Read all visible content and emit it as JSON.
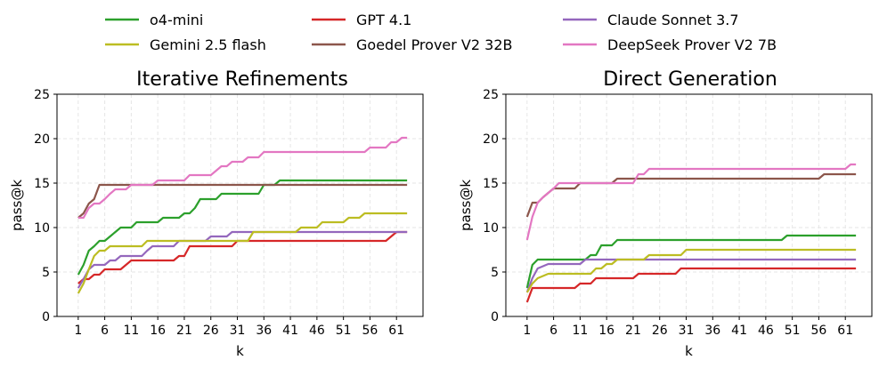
{
  "legend": [
    {
      "name": "o4-mini",
      "color": "#2ca02c"
    },
    {
      "name": "GPT 4.1",
      "color": "#d62728"
    },
    {
      "name": "Claude Sonnet 3.7",
      "color": "#9467bd"
    },
    {
      "name": "Gemini 2.5 flash",
      "color": "#bcbd22"
    },
    {
      "name": "Goedel Prover V2 32B",
      "color": "#8c564b"
    },
    {
      "name": "DeepSeek Prover V2 7B",
      "color": "#e377c2"
    }
  ],
  "chart_data": [
    {
      "type": "line",
      "title": "Iterative Refinements",
      "xlabel": "k",
      "ylabel": "pass@k",
      "xlim": [
        -3,
        66
      ],
      "ylim": [
        0,
        25
      ],
      "xticks": [
        1,
        6,
        11,
        16,
        21,
        26,
        31,
        36,
        41,
        46,
        51,
        56,
        61
      ],
      "yticks": [
        0,
        5,
        10,
        15,
        20,
        25
      ],
      "grid": true,
      "series": [
        {
          "name": "o4-mini",
          "color": "#2ca02c",
          "points": [
            [
              1,
              4.7
            ],
            [
              2,
              5.8
            ],
            [
              3,
              7.4
            ],
            [
              4,
              7.9
            ],
            [
              5,
              8.5
            ],
            [
              6,
              8.5
            ],
            [
              7,
              9.0
            ],
            [
              8,
              9.5
            ],
            [
              9,
              10.0
            ],
            [
              11,
              10.0
            ],
            [
              12,
              10.6
            ],
            [
              16,
              10.6
            ],
            [
              17,
              11.1
            ],
            [
              20,
              11.1
            ],
            [
              21,
              11.6
            ],
            [
              22,
              11.6
            ],
            [
              23,
              12.2
            ],
            [
              24,
              13.2
            ],
            [
              27,
              13.2
            ],
            [
              28,
              13.8
            ],
            [
              35,
              13.8
            ],
            [
              36,
              14.8
            ],
            [
              38,
              14.8
            ],
            [
              39,
              15.3
            ],
            [
              63,
              15.3
            ]
          ]
        },
        {
          "name": "GPT 4.1",
          "color": "#d62728",
          "points": [
            [
              1,
              3.7
            ],
            [
              2,
              4.2
            ],
            [
              3,
              4.2
            ],
            [
              4,
              4.7
            ],
            [
              5,
              4.7
            ],
            [
              6,
              5.3
            ],
            [
              9,
              5.3
            ],
            [
              10,
              5.8
            ],
            [
              11,
              6.3
            ],
            [
              19,
              6.3
            ],
            [
              20,
              6.8
            ],
            [
              21,
              6.8
            ],
            [
              22,
              7.9
            ],
            [
              30,
              7.9
            ],
            [
              31,
              8.5
            ],
            [
              59,
              8.5
            ],
            [
              61,
              9.5
            ],
            [
              63,
              9.5
            ]
          ]
        },
        {
          "name": "Claude Sonnet 3.7",
          "color": "#9467bd",
          "points": [
            [
              1,
              3.2
            ],
            [
              2,
              4.2
            ],
            [
              3,
              5.3
            ],
            [
              4,
              5.8
            ],
            [
              6,
              5.8
            ],
            [
              7,
              6.3
            ],
            [
              8,
              6.3
            ],
            [
              9,
              6.8
            ],
            [
              13,
              6.8
            ],
            [
              14,
              7.4
            ],
            [
              15,
              7.9
            ],
            [
              19,
              7.9
            ],
            [
              20,
              8.5
            ],
            [
              25,
              8.5
            ],
            [
              26,
              9.0
            ],
            [
              29,
              9.0
            ],
            [
              30,
              9.5
            ],
            [
              63,
              9.5
            ]
          ]
        },
        {
          "name": "Gemini 2.5 flash",
          "color": "#bcbd22",
          "points": [
            [
              1,
              2.6
            ],
            [
              2,
              3.7
            ],
            [
              3,
              5.3
            ],
            [
              4,
              6.8
            ],
            [
              5,
              7.4
            ],
            [
              6,
              7.4
            ],
            [
              7,
              7.9
            ],
            [
              13,
              7.9
            ],
            [
              14,
              8.5
            ],
            [
              33,
              8.5
            ],
            [
              34,
              9.5
            ],
            [
              42,
              9.5
            ],
            [
              43,
              10.0
            ],
            [
              46,
              10.0
            ],
            [
              47,
              10.6
            ],
            [
              51,
              10.6
            ],
            [
              52,
              11.1
            ],
            [
              54,
              11.1
            ],
            [
              55,
              11.6
            ],
            [
              63,
              11.6
            ]
          ]
        },
        {
          "name": "Goedel Prover V2 32B",
          "color": "#8c564b",
          "points": [
            [
              1,
              11.1
            ],
            [
              2,
              11.6
            ],
            [
              3,
              12.7
            ],
            [
              4,
              13.2
            ],
            [
              5,
              14.8
            ],
            [
              63,
              14.8
            ]
          ]
        },
        {
          "name": "DeepSeek Prover V2 7B",
          "color": "#e377c2",
          "points": [
            [
              1,
              11.1
            ],
            [
              2,
              11.1
            ],
            [
              3,
              12.2
            ],
            [
              4,
              12.7
            ],
            [
              5,
              12.7
            ],
            [
              6,
              13.2
            ],
            [
              7,
              13.8
            ],
            [
              8,
              14.3
            ],
            [
              10,
              14.3
            ],
            [
              11,
              14.8
            ],
            [
              15,
              14.8
            ],
            [
              16,
              15.3
            ],
            [
              21,
              15.3
            ],
            [
              22,
              15.9
            ],
            [
              26,
              15.9
            ],
            [
              27,
              16.4
            ],
            [
              28,
              16.9
            ],
            [
              29,
              16.9
            ],
            [
              30,
              17.4
            ],
            [
              32,
              17.4
            ],
            [
              33,
              17.9
            ],
            [
              35,
              17.9
            ],
            [
              36,
              18.5
            ],
            [
              55,
              18.5
            ],
            [
              56,
              19.0
            ],
            [
              59,
              19.0
            ],
            [
              60,
              19.6
            ],
            [
              61,
              19.6
            ],
            [
              62,
              20.1
            ],
            [
              63,
              20.1
            ]
          ]
        }
      ]
    },
    {
      "type": "line",
      "title": "Direct Generation",
      "xlabel": "k",
      "ylabel": "pass@k",
      "xlim": [
        -3,
        66
      ],
      "ylim": [
        0,
        25
      ],
      "xticks": [
        1,
        6,
        11,
        16,
        21,
        26,
        31,
        36,
        41,
        46,
        51,
        56,
        61
      ],
      "yticks": [
        0,
        5,
        10,
        15,
        20,
        25
      ],
      "grid": true,
      "series": [
        {
          "name": "o4-mini",
          "color": "#2ca02c",
          "points": [
            [
              1,
              3.2
            ],
            [
              2,
              5.8
            ],
            [
              3,
              6.4
            ],
            [
              12,
              6.4
            ],
            [
              13,
              6.9
            ],
            [
              14,
              6.9
            ],
            [
              15,
              8.0
            ],
            [
              17,
              8.0
            ],
            [
              18,
              8.6
            ],
            [
              49,
              8.6
            ],
            [
              50,
              9.1
            ],
            [
              63,
              9.1
            ]
          ]
        },
        {
          "name": "GPT 4.1",
          "color": "#d62728",
          "points": [
            [
              1,
              1.6
            ],
            [
              2,
              3.2
            ],
            [
              10,
              3.2
            ],
            [
              11,
              3.7
            ],
            [
              13,
              3.7
            ],
            [
              14,
              4.3
            ],
            [
              21,
              4.3
            ],
            [
              22,
              4.8
            ],
            [
              29,
              4.8
            ],
            [
              30,
              5.4
            ],
            [
              63,
              5.4
            ]
          ]
        },
        {
          "name": "Claude Sonnet 3.7",
          "color": "#9467bd",
          "points": [
            [
              1,
              2.7
            ],
            [
              2,
              4.3
            ],
            [
              3,
              5.4
            ],
            [
              5,
              5.9
            ],
            [
              11,
              5.9
            ],
            [
              12,
              6.4
            ],
            [
              63,
              6.4
            ]
          ]
        },
        {
          "name": "Gemini 2.5 flash",
          "color": "#bcbd22",
          "points": [
            [
              1,
              2.7
            ],
            [
              2,
              3.7
            ],
            [
              3,
              4.3
            ],
            [
              5,
              4.8
            ],
            [
              13,
              4.8
            ],
            [
              14,
              5.4
            ],
            [
              15,
              5.4
            ],
            [
              16,
              5.9
            ],
            [
              17,
              5.9
            ],
            [
              18,
              6.4
            ],
            [
              23,
              6.4
            ],
            [
              24,
              6.9
            ],
            [
              30,
              6.9
            ],
            [
              31,
              7.5
            ],
            [
              63,
              7.5
            ]
          ]
        },
        {
          "name": "Goedel Prover V2 32B",
          "color": "#8c564b",
          "points": [
            [
              1,
              11.2
            ],
            [
              2,
              12.8
            ],
            [
              3,
              12.8
            ],
            [
              4,
              13.4
            ],
            [
              5,
              13.9
            ],
            [
              6,
              14.4
            ],
            [
              10,
              14.4
            ],
            [
              11,
              15.0
            ],
            [
              17,
              15.0
            ],
            [
              18,
              15.5
            ],
            [
              56,
              15.5
            ],
            [
              57,
              16.0
            ],
            [
              63,
              16.0
            ]
          ]
        },
        {
          "name": "DeepSeek Prover V2 7B",
          "color": "#e377c2",
          "points": [
            [
              1,
              8.6
            ],
            [
              2,
              11.2
            ],
            [
              3,
              12.8
            ],
            [
              4,
              13.4
            ],
            [
              5,
              13.9
            ],
            [
              6,
              14.4
            ],
            [
              7,
              15.0
            ],
            [
              21,
              15.0
            ],
            [
              22,
              16.0
            ],
            [
              23,
              16.0
            ],
            [
              24,
              16.6
            ],
            [
              61,
              16.6
            ],
            [
              62,
              17.1
            ],
            [
              63,
              17.1
            ]
          ]
        }
      ]
    }
  ]
}
